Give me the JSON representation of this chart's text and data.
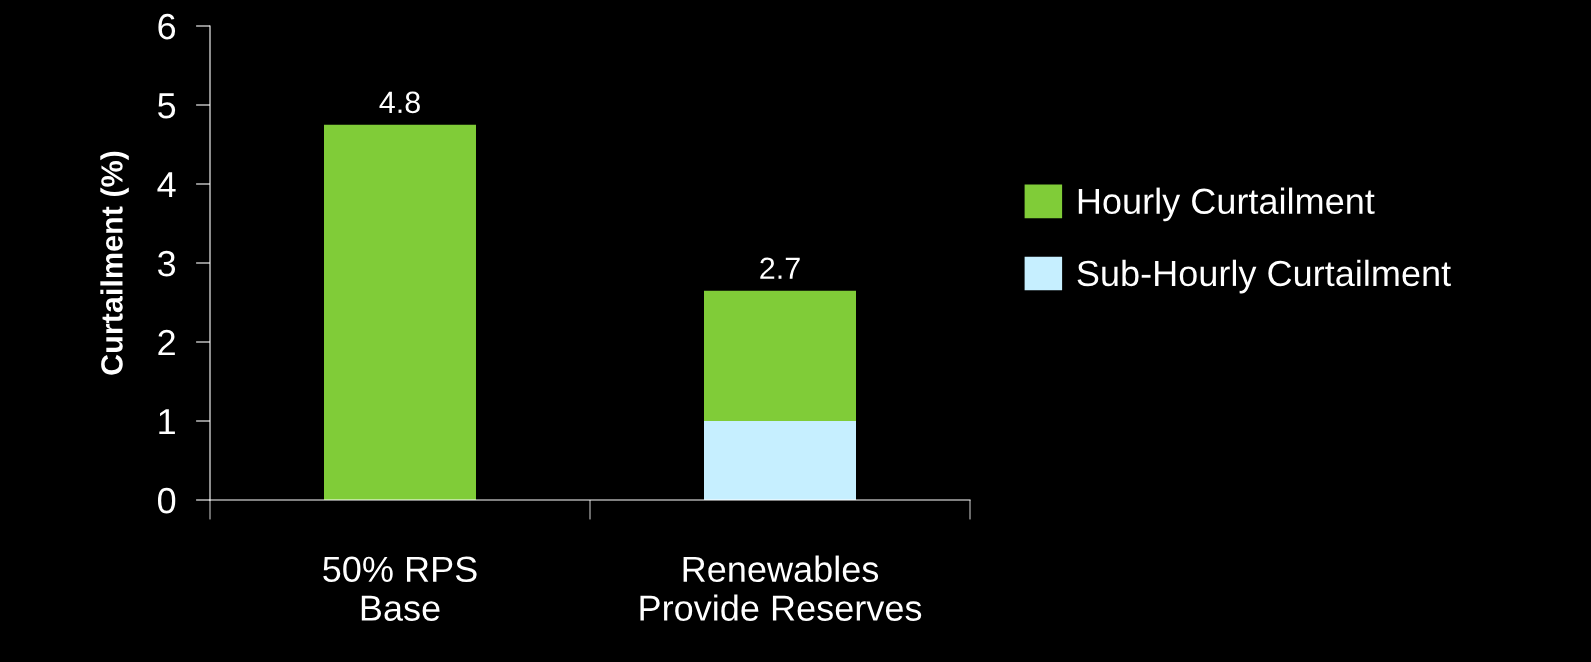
{
  "chart_data": {
    "type": "bar",
    "ylabel": "Curtailment (%)",
    "stacked": true,
    "categories": [
      "50% RPS\nBase",
      "Renewables\nProvide Reserves"
    ],
    "series": [
      {
        "name": "Sub-Hourly Curtailment",
        "color": "#c6efff",
        "values": [
          0,
          1.0
        ]
      },
      {
        "name": "Hourly Curtailment",
        "color": "#80cc38",
        "values": [
          4.75,
          1.65
        ]
      }
    ],
    "totals": [
      "4.8",
      "2.7"
    ],
    "ylim": [
      0,
      6
    ],
    "yticks": [
      0,
      1,
      2,
      3,
      4,
      5,
      6
    ],
    "grid": false,
    "legend": "right"
  }
}
